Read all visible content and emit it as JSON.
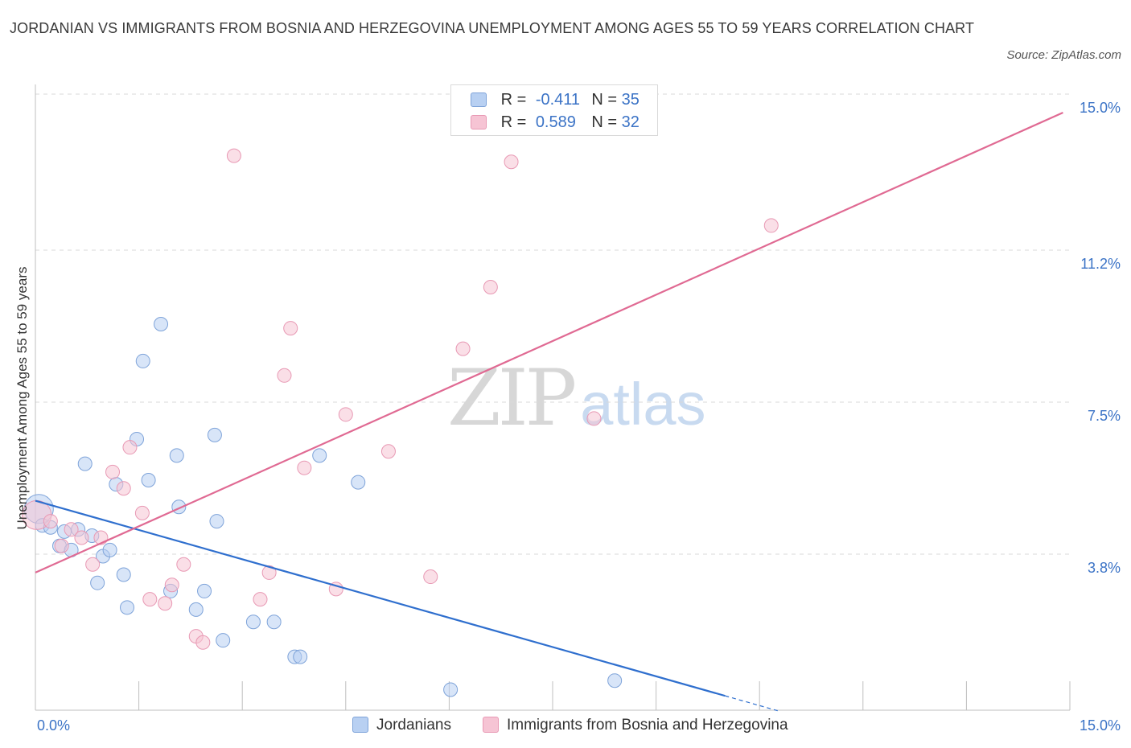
{
  "title": "JORDANIAN VS IMMIGRANTS FROM BOSNIA AND HERZEGOVINA UNEMPLOYMENT AMONG AGES 55 TO 59 YEARS CORRELATION CHART",
  "source": "Source: ZipAtlas.com",
  "watermark": {
    "zip": "ZIP",
    "atlas": "atlas"
  },
  "legend": {
    "rows": [
      {
        "r_label": "R =",
        "r_value": "-0.411",
        "n_label": "N =",
        "n_value": "35"
      },
      {
        "r_label": "R =",
        "r_value": "0.589",
        "n_label": "N =",
        "n_value": "32"
      }
    ]
  },
  "bottom_legend": [
    "Jordanians",
    "Immigrants from Bosnia and Herzegovina"
  ],
  "colors": {
    "blue_fill": "#b8d0f2",
    "blue_stroke": "#7ea3d9",
    "blue_line": "#2f6fce",
    "pink_fill": "#f6c4d4",
    "pink_stroke": "#e899b4",
    "pink_line": "#e06a93",
    "grid": "#d8d8d8",
    "axis_text": "#3b73c6"
  },
  "chart_data": {
    "type": "scatter",
    "title": "JORDANIAN VS IMMIGRANTS FROM BOSNIA AND HERZEGOVINA UNEMPLOYMENT AMONG AGES 55 TO 59 YEARS CORRELATION CHART",
    "xlabel": "",
    "ylabel": "Unemployment Among Ages 55 to 59 years",
    "xlim": [
      0,
      15
    ],
    "ylim": [
      0,
      15
    ],
    "x_tick_labels": [
      "0.0%",
      "15.0%"
    ],
    "y_ticks": [
      3.8,
      7.5,
      11.2,
      15.0
    ],
    "y_tick_labels": [
      "3.8%",
      "7.5%",
      "11.2%",
      "15.0%"
    ],
    "grid": true,
    "legend_position": "top-center",
    "series": [
      {
        "name": "Jordanians",
        "color": "blue",
        "R": -0.411,
        "N": 35,
        "points": [
          {
            "x": 0.05,
            "y": 4.9,
            "size": "large"
          },
          {
            "x": 0.1,
            "y": 4.5
          },
          {
            "x": 0.22,
            "y": 4.45
          },
          {
            "x": 0.35,
            "y": 4.0
          },
          {
            "x": 0.42,
            "y": 4.35
          },
          {
            "x": 0.52,
            "y": 3.9
          },
          {
            "x": 0.62,
            "y": 4.4
          },
          {
            "x": 0.72,
            "y": 6.0
          },
          {
            "x": 0.82,
            "y": 4.25
          },
          {
            "x": 0.9,
            "y": 3.1
          },
          {
            "x": 0.98,
            "y": 3.75
          },
          {
            "x": 1.08,
            "y": 3.9
          },
          {
            "x": 1.17,
            "y": 5.5
          },
          {
            "x": 1.28,
            "y": 3.3
          },
          {
            "x": 1.33,
            "y": 2.5
          },
          {
            "x": 1.47,
            "y": 6.6
          },
          {
            "x": 1.56,
            "y": 8.5
          },
          {
            "x": 1.64,
            "y": 5.6
          },
          {
            "x": 1.82,
            "y": 9.4
          },
          {
            "x": 1.96,
            "y": 2.9
          },
          {
            "x": 2.05,
            "y": 6.2
          },
          {
            "x": 2.08,
            "y": 4.95
          },
          {
            "x": 2.33,
            "y": 2.45
          },
          {
            "x": 2.45,
            "y": 2.9
          },
          {
            "x": 2.6,
            "y": 6.7
          },
          {
            "x": 2.63,
            "y": 4.6
          },
          {
            "x": 2.72,
            "y": 1.7
          },
          {
            "x": 3.16,
            "y": 2.15
          },
          {
            "x": 3.46,
            "y": 2.15
          },
          {
            "x": 3.76,
            "y": 1.3
          },
          {
            "x": 3.84,
            "y": 1.3
          },
          {
            "x": 4.12,
            "y": 6.2
          },
          {
            "x": 4.68,
            "y": 5.55
          },
          {
            "x": 6.02,
            "y": 0.5
          },
          {
            "x": 8.4,
            "y": 0.72
          }
        ],
        "trend": {
          "x0": 0.0,
          "y0": 5.1,
          "x1": 10.0,
          "y1": 0.35,
          "dash_to_x": 10.8
        }
      },
      {
        "name": "Immigrants from Bosnia and Herzegovina",
        "color": "pink",
        "R": 0.589,
        "N": 32,
        "points": [
          {
            "x": 0.02,
            "y": 4.75,
            "size": "large"
          },
          {
            "x": 0.22,
            "y": 4.6
          },
          {
            "x": 0.38,
            "y": 4.0
          },
          {
            "x": 0.52,
            "y": 4.4
          },
          {
            "x": 0.67,
            "y": 4.2
          },
          {
            "x": 0.83,
            "y": 3.55
          },
          {
            "x": 0.95,
            "y": 4.2
          },
          {
            "x": 1.12,
            "y": 5.8
          },
          {
            "x": 1.28,
            "y": 5.4
          },
          {
            "x": 1.37,
            "y": 6.4
          },
          {
            "x": 1.55,
            "y": 4.8
          },
          {
            "x": 1.66,
            "y": 2.7
          },
          {
            "x": 1.88,
            "y": 2.6
          },
          {
            "x": 1.98,
            "y": 3.05
          },
          {
            "x": 2.15,
            "y": 3.55
          },
          {
            "x": 2.33,
            "y": 1.8
          },
          {
            "x": 2.43,
            "y": 1.65
          },
          {
            "x": 2.88,
            "y": 13.5
          },
          {
            "x": 3.26,
            "y": 2.7
          },
          {
            "x": 3.39,
            "y": 3.35
          },
          {
            "x": 3.61,
            "y": 8.15
          },
          {
            "x": 3.7,
            "y": 9.3
          },
          {
            "x": 3.9,
            "y": 5.9
          },
          {
            "x": 4.36,
            "y": 2.95
          },
          {
            "x": 4.5,
            "y": 7.2
          },
          {
            "x": 5.12,
            "y": 6.3
          },
          {
            "x": 5.73,
            "y": 3.25
          },
          {
            "x": 6.2,
            "y": 8.8
          },
          {
            "x": 6.6,
            "y": 10.3
          },
          {
            "x": 6.9,
            "y": 13.35
          },
          {
            "x": 8.1,
            "y": 7.1
          },
          {
            "x": 10.67,
            "y": 11.8
          }
        ],
        "trend": {
          "x0": 0.0,
          "y0": 3.35,
          "x1": 14.9,
          "y1": 14.55
        }
      }
    ]
  }
}
